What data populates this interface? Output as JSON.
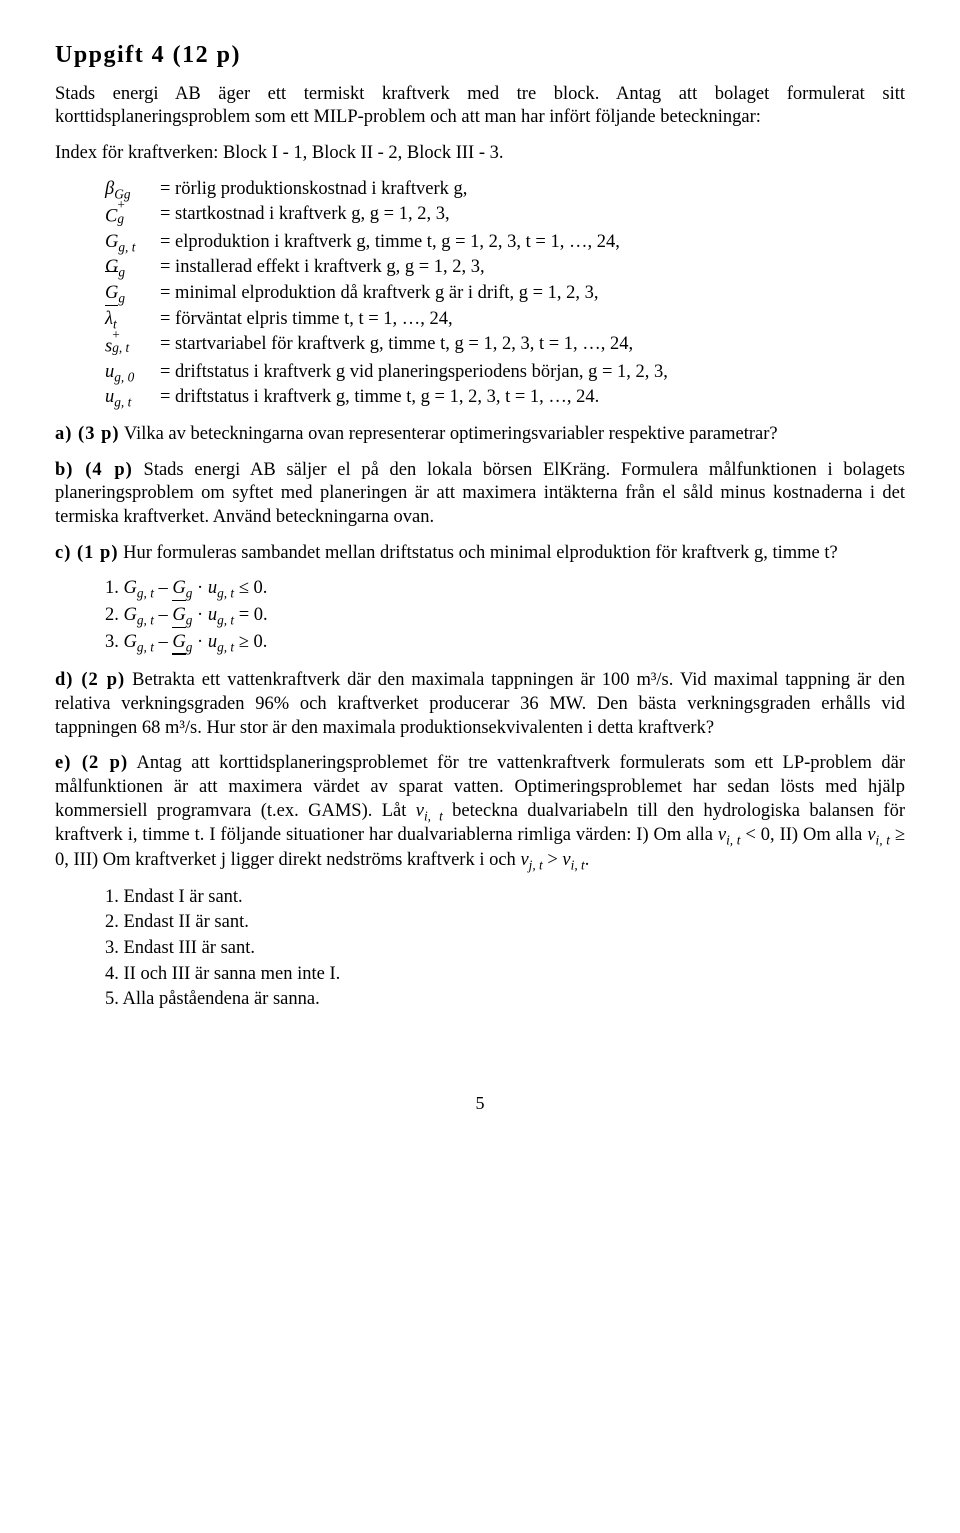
{
  "title": "Uppgift 4 (12 p)",
  "intro1": "Stads energi AB äger ett termiskt kraftverk med tre block. Antag att bolaget formulerat sitt korttidsplaneringsproblem som ett MILP-problem och att man har infört följande beteckningar:",
  "index_line": "Index för kraftverken: Block I - 1, Block II - 2, Block III - 3.",
  "defs": {
    "d1": "= rörlig produktionskostnad i kraftverk g,",
    "d2": "= startkostnad i kraftverk g, g = 1, 2, 3,",
    "d3": "= elproduktion i kraftverk g, timme t, g = 1, 2, 3, t = 1, …, 24,",
    "d4": "= installerad effekt i kraftverk g, g = 1, 2, 3,",
    "d5": "= minimal elproduktion då kraftverk g är i drift, g = 1, 2, 3,",
    "d6": "= förväntat elpris timme t, t = 1, …, 24,",
    "d7": "= startvariabel för kraftverk g, timme t, g = 1, 2, 3, t = 1, …, 24,",
    "d8": "= driftstatus i kraftverk g vid planeringsperiodens början, g = 1, 2, 3,",
    "d9": "= driftstatus i kraftverk g, timme t, g = 1, 2, 3, t = 1, …, 24."
  },
  "a_label": "a) (3 p)",
  "a_text": " Vilka av beteckningarna ovan representerar optimeringsvariabler respektive parametrar?",
  "b_label": "b) (4 p)",
  "b_text": " Stads energi AB säljer el på den lokala börsen ElKräng. Formulera målfunktionen i bolagets planeringsproblem om syftet med planeringen är att maximera intäkterna från el såld minus kostnaderna i det termiska kraftverket. Använd beteckningarna ovan.",
  "c_label": "c) (1 p)",
  "c_text": " Hur formuleras sambandet mellan driftstatus och minimal elproduktion för kraftverk g, timme t?",
  "c_opts": {
    "o1_pre": "1.  ",
    "o1_rel": " ≤ 0.",
    "o2_pre": "2.  ",
    "o2_rel": " = 0.",
    "o3_pre": "3.  ",
    "o3_rel": " ≥ 0."
  },
  "d_label": "d) (2 p)",
  "d_text": " Betrakta ett vattenkraftverk där den maximala tappningen är 100 m³/s. Vid maximal tappning är den relativa verkningsgraden 96% och kraftverket producerar 36 MW. Den bästa verkningsgraden erhålls vid tappningen 68  m³/s. Hur stor är den maximala produktionsekvivalenten i detta kraftverk?",
  "e_label": "e) (2 p)",
  "e_text1": " Antag att korttidsplaneringsproblemet för tre vattenkraftverk formulerats som ett LP-problem där målfunktionen är att maximera värdet av sparat vatten. Optimeringsproblemet har sedan lösts med hjälp kommersiell programvara (t.ex. GAMS). Låt ",
  "e_text2": " beteckna dualvariabeln till den hydrologiska balansen för kraftverk i, timme t. I följande situationer har dualvariablerna rimliga värden: I) Om alla ",
  "e_text3": " < 0, II) Om alla ",
  "e_text4": " ≥ 0, III) Om kraftverket j ligger direkt nedströms kraftverk i och ",
  "e_text5": " > ",
  "e_text6": ".",
  "e_opts": {
    "o1": "1.  Endast I är sant.",
    "o2": "2.  Endast II är sant.",
    "o3": "3.  Endast III är sant.",
    "o4": "4.  II och III är sanna men inte I.",
    "o5": "5.  Alla påståendena är sanna."
  },
  "page": "5"
}
